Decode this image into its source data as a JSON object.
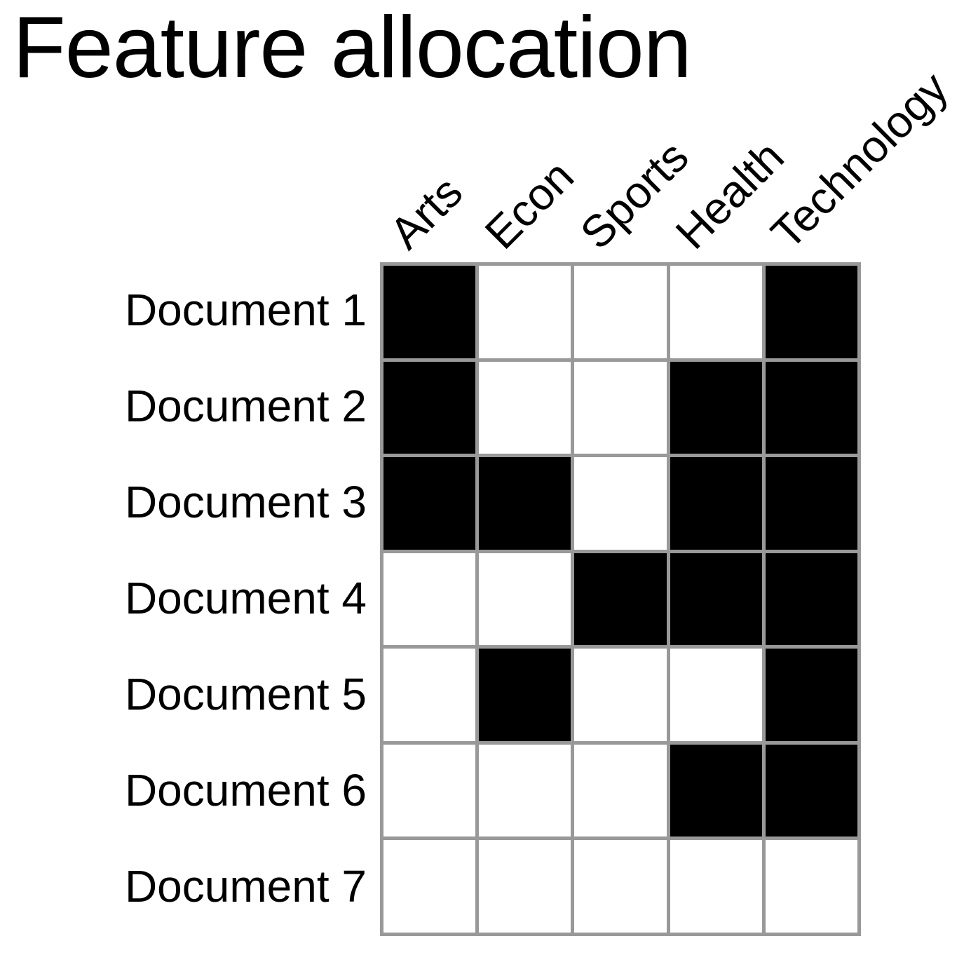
{
  "title": "Feature allocation",
  "features": [
    "Arts",
    "Econ",
    "Sports",
    "Health",
    "Technology"
  ],
  "documents": [
    "Document 1",
    "Document 2",
    "Document 3",
    "Document 4",
    "Document 5",
    "Document 6",
    "Document 7"
  ],
  "matrix": [
    [
      1,
      0,
      0,
      0,
      1
    ],
    [
      1,
      0,
      0,
      1,
      1
    ],
    [
      1,
      1,
      0,
      1,
      1
    ],
    [
      0,
      0,
      1,
      1,
      1
    ],
    [
      0,
      1,
      0,
      0,
      1
    ],
    [
      0,
      0,
      0,
      1,
      1
    ],
    [
      0,
      0,
      0,
      0,
      0
    ]
  ],
  "colors": {
    "active": "#000000",
    "inactive": "#ffffff",
    "grid_line": "#999999"
  }
}
